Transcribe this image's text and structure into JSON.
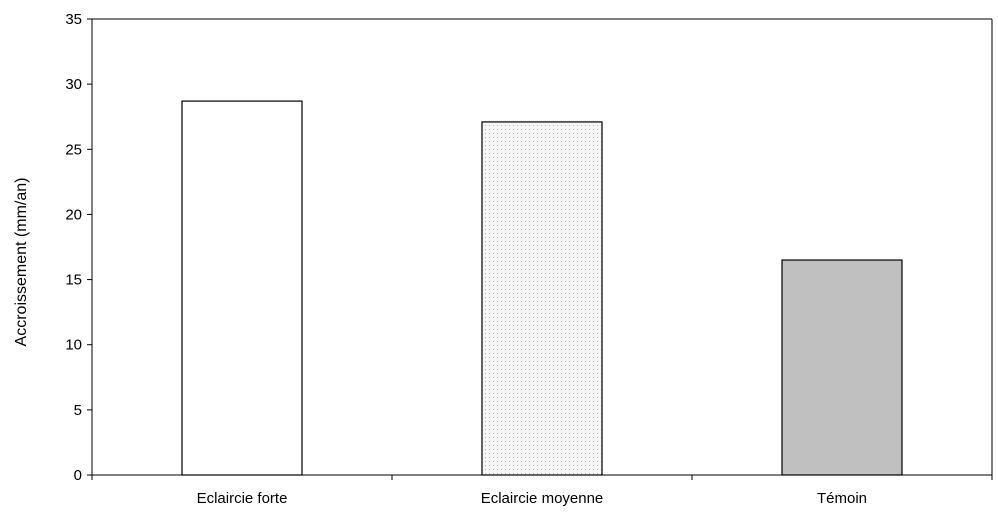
{
  "chart_data": {
    "type": "bar",
    "title": "",
    "xlabel": "",
    "ylabel": "Accroissement  (mm/an)",
    "categories": [
      "Eclaircie forte",
      "Eclaircie moyenne",
      "Témoin"
    ],
    "values": [
      28.7,
      27.1,
      16.5
    ],
    "ylim": [
      0,
      35
    ],
    "yticks": [
      0,
      5,
      10,
      15,
      20,
      25,
      30,
      35
    ],
    "grid": false,
    "legend": "none",
    "bar_styles": [
      {
        "fill": "#ffffff",
        "pattern": "none"
      },
      {
        "fill": "#f4f4f4",
        "pattern": "fine-dots"
      },
      {
        "fill": "#c0c0c0",
        "pattern": "none"
      }
    ],
    "colors": {
      "axis": "#000000",
      "bar_outline": "#000000"
    }
  }
}
